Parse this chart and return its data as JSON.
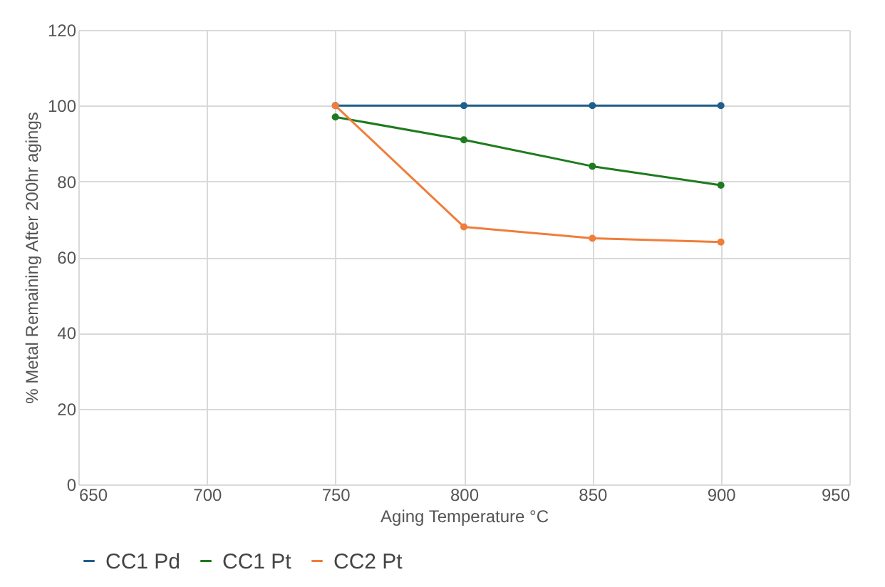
{
  "chart_data": {
    "type": "line",
    "xlabel": "Aging Temperature °C",
    "ylabel": "% Metal Remaining After 200hr agings",
    "x": [
      750,
      800,
      850,
      900
    ],
    "series": [
      {
        "name": "CC1 Pd",
        "color": "#1f5f8b",
        "values": [
          100,
          100,
          100,
          100
        ]
      },
      {
        "name": "CC1 Pt",
        "color": "#1e7b1e",
        "values": [
          97,
          91,
          84,
          79
        ]
      },
      {
        "name": "CC2 Pt",
        "color": "#f07d3a",
        "values": [
          100,
          68,
          65,
          64
        ]
      }
    ],
    "xlim": [
      650,
      950
    ],
    "xticks": [
      650,
      700,
      750,
      800,
      850,
      900,
      950
    ],
    "ylim": [
      0,
      120
    ],
    "yticks": [
      0,
      20,
      40,
      60,
      80,
      100,
      120
    ],
    "grid": true,
    "legend": "bottom",
    "marker": "circle",
    "line_style": "solid"
  }
}
